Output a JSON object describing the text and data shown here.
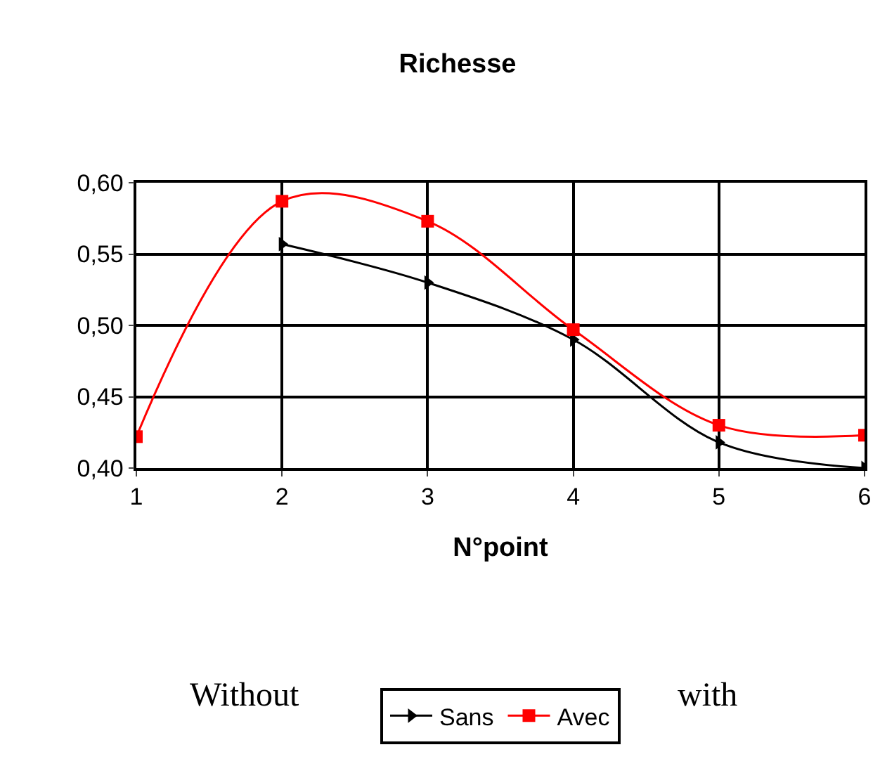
{
  "chart_data": {
    "type": "line",
    "title": "Richesse",
    "xlabel": "N°point",
    "x": [
      1,
      2,
      3,
      4,
      5,
      6
    ],
    "series": [
      {
        "name": "Sans",
        "color": "#000000",
        "marker": "triangle",
        "values": [
          null,
          0.557,
          0.53,
          0.49,
          0.418,
          0.4
        ]
      },
      {
        "name": "Avec",
        "color": "#ff0000",
        "marker": "square",
        "values": [
          0.422,
          0.587,
          0.573,
          0.497,
          0.43,
          0.423
        ]
      }
    ],
    "xlim": [
      1,
      6
    ],
    "xticks": [
      1,
      2,
      3,
      4,
      5,
      6
    ],
    "ylim": [
      0.4,
      0.6
    ],
    "yticks": [
      {
        "value": 0.4,
        "label": "0,40"
      },
      {
        "value": 0.45,
        "label": "0,45"
      },
      {
        "value": 0.5,
        "label": "0,50"
      },
      {
        "value": 0.55,
        "label": "0,55"
      },
      {
        "value": 0.6,
        "label": "0,60"
      }
    ],
    "grid": true,
    "legend": "bottom",
    "line_style": "solid",
    "annotations": [
      "Without",
      "with"
    ]
  }
}
